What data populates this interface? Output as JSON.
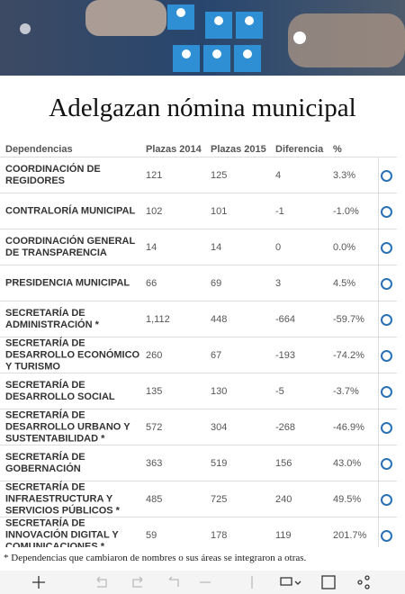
{
  "header": {
    "title": "Adelgazan nómina municipal"
  },
  "table": {
    "columns": [
      "Dependencias",
      "Plazas 2014",
      "Plazas 2015",
      "Diferencia",
      "%"
    ],
    "rows": [
      [
        "COORDINACIÓN DE REGIDORES",
        "121",
        "125",
        "4",
        "3.3%"
      ],
      [
        "CONTRALORÍA MUNICIPAL",
        "102",
        "101",
        "-1",
        "-1.0%"
      ],
      [
        "COORDINACIÓN GENERAL DE TRANSPARENCIA",
        "14",
        "14",
        "0",
        "0.0%"
      ],
      [
        "PRESIDENCIA MUNICIPAL",
        "66",
        "69",
        "3",
        "4.5%"
      ],
      [
        "SECRETARÍA DE ADMINISTRACIÓN *",
        "1,112",
        "448",
        "-664",
        "-59.7%"
      ],
      [
        "SECRETARÍA DE DESARROLLO ECONÓMICO Y TURISMO",
        "260",
        "67",
        "-193",
        "-74.2%"
      ],
      [
        "SECRETARÍA DE DESARROLLO SOCIAL",
        "135",
        "130",
        "-5",
        "-3.7%"
      ],
      [
        "SECRETARÍA DE DESARROLLO URBANO Y SUSTENTABILIDAD *",
        "572",
        "304",
        "-268",
        "-46.9%"
      ],
      [
        "SECRETARÍA DE GOBERNACIÓN",
        "363",
        "519",
        "156",
        "43.0%"
      ],
      [
        "SECRETARÍA DE INFRAESTRUCTURA Y SERVICIOS PÚBLICOS *",
        "485",
        "725",
        "240",
        "49.5%"
      ],
      [
        "SECRETARÍA DE INNOVACIÓN DIGITAL Y COMUNICACIONES *",
        "59",
        "178",
        "119",
        "201.7%"
      ]
    ]
  },
  "footnote": "* Dependencias que cambiaron de nombres o sus áreas se integraron a otras."
}
